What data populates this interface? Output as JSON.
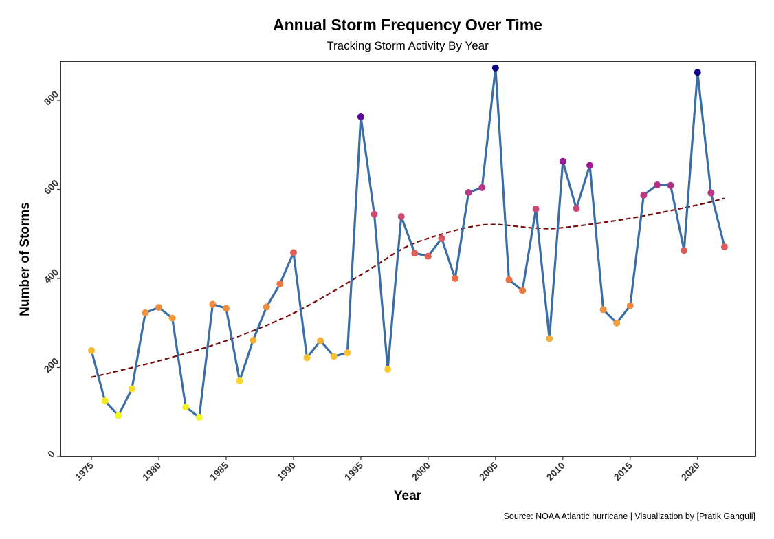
{
  "chart_data": {
    "type": "line",
    "title": "Annual Storm Frequency Over Time",
    "subtitle": "Tracking Storm Activity By Year",
    "xlabel": "Year",
    "ylabel": "Number of Storms",
    "caption": "Source: NOAA Atlantic hurricane | Visualization by [Pratik Ganguli]",
    "xlim": [
      1972.7,
      2024.3
    ],
    "ylim": [
      0,
      888
    ],
    "x_ticks": [
      1975,
      1980,
      1985,
      1990,
      1995,
      2000,
      2005,
      2010,
      2015,
      2020
    ],
    "y_ticks": [
      0,
      200,
      400,
      600,
      800
    ],
    "grid": false,
    "legend": "none",
    "line_color": "#3b6ea5",
    "trend_color": "#7a0a0a",
    "color_scale": "plasma (reversed, by value)",
    "series": [
      {
        "x": [
          1975,
          1976,
          1977,
          1978,
          1979,
          1980,
          1981,
          1982,
          1983,
          1984,
          1985,
          1986,
          1987,
          1988,
          1989,
          1990,
          1991,
          1992,
          1993,
          1994,
          1995,
          1996,
          1997,
          1998,
          1999,
          2000,
          2001,
          2002,
          2003,
          2004,
          2005,
          2006,
          2007,
          2008,
          2009,
          2010,
          2011,
          2012,
          2013,
          2014,
          2015,
          2016,
          2017,
          2018,
          2019,
          2020,
          2021,
          2022
        ],
        "values": [
          238,
          125,
          92,
          152,
          323,
          335,
          311,
          111,
          88,
          342,
          333,
          170,
          261,
          336,
          388,
          458,
          222,
          260,
          225,
          233,
          763,
          544,
          196,
          539,
          457,
          450,
          490,
          400,
          593,
          604,
          873,
          397,
          373,
          556,
          265,
          663,
          557,
          654,
          330,
          300,
          339,
          587,
          610,
          609,
          463,
          863,
          592,
          471
        ]
      },
      {
        "type": "smooth",
        "x": [
          1975,
          1980,
          1985,
          1990,
          1995,
          1998,
          2000,
          2003,
          2005,
          2008,
          2010,
          2015,
          2020,
          2022
        ],
        "values": [
          178,
          215,
          260,
          322,
          408,
          465,
          490,
          515,
          521,
          513,
          514,
          535,
          565,
          580
        ]
      }
    ]
  }
}
